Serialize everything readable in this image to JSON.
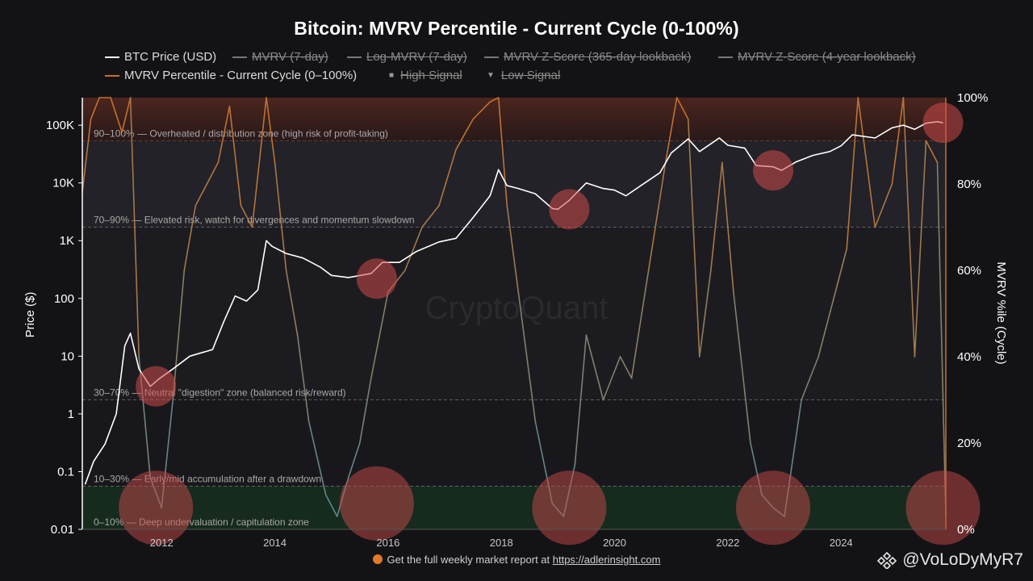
{
  "chart_data": {
    "type": "line",
    "title": "Bitcoin: MVRV Percentile - Current Cycle (0-100%)",
    "ylabel_left": "Price ($)",
    "ylabel_right": "MVRV %ile (Cycle)",
    "y_left_scale": "log",
    "y_left_range": [
      0.01,
      300000
    ],
    "y_left_ticks": [
      "100K",
      "10K",
      "1K",
      "100",
      "10",
      "1",
      "0.1",
      "0.01"
    ],
    "y_left_tick_values": [
      100000,
      10000,
      1000,
      100,
      10,
      1,
      0.1,
      0.01
    ],
    "y_right_range": [
      0,
      100
    ],
    "y_right_ticks": [
      "100%",
      "80%",
      "60%",
      "40%",
      "20%",
      "0%"
    ],
    "y_right_tick_values": [
      100,
      80,
      60,
      40,
      20,
      0
    ],
    "x_range": [
      2010.6,
      2025.85
    ],
    "x_ticks": [
      "2012",
      "2014",
      "2016",
      "2018",
      "2020",
      "2022",
      "2024"
    ],
    "x_tick_values": [
      2012,
      2014,
      2016,
      2018,
      2020,
      2022,
      2024
    ],
    "legend": [
      {
        "label": "BTC Price (USD)",
        "color": "#ffffff",
        "active": true
      },
      {
        "label": "MVRV (7-day)",
        "color": "#777777",
        "active": false
      },
      {
        "label": "Log-MVRV (7-day)",
        "color": "#777777",
        "active": false
      },
      {
        "label": "MVRV Z-Score (365-day lookback)",
        "color": "#777777",
        "active": false
      },
      {
        "label": "MVRV Z-Score (4-year lookback)",
        "color": "#777777",
        "active": false
      },
      {
        "label": "MVRV Percentile - Current Cycle (0–100%)",
        "color": "#c8702a",
        "active": true
      },
      {
        "label": "High Signal",
        "color": "#9a9a9a",
        "active": false,
        "marker": "■"
      },
      {
        "label": "Low Signal",
        "color": "#9a9a9a",
        "active": false,
        "marker": "▼"
      }
    ],
    "zones": [
      {
        "label": "90–100% — Overheated / distribution zone (high risk of profit-taking)",
        "from": 90,
        "to": 100,
        "color": "#5a2a22"
      },
      {
        "label": "70–90% — Elevated risk, watch for divergences and momentum slowdown",
        "from": 70,
        "to": 90,
        "color": "#26262c"
      },
      {
        "label": "30–70% — Neutral \"digestion\" zone (balanced risk/reward)",
        "from": 30,
        "to": 70,
        "color": "#1e1e22"
      },
      {
        "label": "10–30% — Early/mid accumulation after a drawdown",
        "from": 10,
        "to": 30,
        "color": "#1a1a1d"
      },
      {
        "label": "0–10% — Deep undervaluation / capitulation zone",
        "from": 0,
        "to": 10,
        "color": "#17301f"
      }
    ],
    "series": [
      {
        "name": "BTC Price (USD)",
        "axis": "left",
        "color": "#ffffff",
        "x": [
          2010.65,
          2010.8,
          2011.0,
          2011.2,
          2011.35,
          2011.45,
          2011.6,
          2011.8,
          2011.95,
          2012.2,
          2012.5,
          2012.9,
          2013.1,
          2013.3,
          2013.5,
          2013.7,
          2013.85,
          2013.95,
          2014.2,
          2014.5,
          2014.8,
          2015.0,
          2015.3,
          2015.7,
          2015.9,
          2016.2,
          2016.5,
          2016.9,
          2017.2,
          2017.5,
          2017.8,
          2017.95,
          2018.1,
          2018.3,
          2018.6,
          2018.9,
          2019.0,
          2019.2,
          2019.5,
          2019.8,
          2020.0,
          2020.2,
          2020.5,
          2020.8,
          2021.0,
          2021.3,
          2021.5,
          2021.85,
          2022.0,
          2022.3,
          2022.5,
          2022.8,
          2022.95,
          2023.2,
          2023.5,
          2023.8,
          2024.0,
          2024.2,
          2024.6,
          2024.9,
          2025.1,
          2025.3,
          2025.5,
          2025.7,
          2025.8
        ],
        "values": [
          0.06,
          0.15,
          0.3,
          1.0,
          15,
          25,
          6,
          3,
          4,
          6,
          10,
          13,
          40,
          110,
          90,
          140,
          1000,
          800,
          600,
          500,
          350,
          250,
          230,
          270,
          420,
          420,
          650,
          950,
          1100,
          2500,
          6000,
          17000,
          9000,
          8000,
          6500,
          3600,
          3500,
          5000,
          10000,
          8000,
          7500,
          6000,
          9500,
          15000,
          33000,
          58000,
          35000,
          60000,
          45000,
          40000,
          20000,
          19000,
          16500,
          23000,
          30000,
          35000,
          44000,
          68000,
          60000,
          90000,
          100000,
          85000,
          108000,
          115000,
          110000
        ]
      },
      {
        "name": "MVRV Percentile - Current Cycle (0–100%)",
        "axis": "right",
        "color": "#c8702a",
        "x": [
          2010.6,
          2010.75,
          2010.9,
          2011.1,
          2011.3,
          2011.45,
          2011.6,
          2011.8,
          2012.0,
          2012.2,
          2012.4,
          2012.6,
          2012.8,
          2013.0,
          2013.2,
          2013.4,
          2013.6,
          2013.85,
          2014.0,
          2014.2,
          2014.4,
          2014.6,
          2014.9,
          2015.1,
          2015.3,
          2015.5,
          2015.7,
          2016.0,
          2016.3,
          2016.6,
          2016.9,
          2017.2,
          2017.5,
          2017.8,
          2017.95,
          2018.1,
          2018.3,
          2018.6,
          2018.9,
          2019.1,
          2019.3,
          2019.5,
          2019.8,
          2020.1,
          2020.3,
          2020.6,
          2020.9,
          2021.1,
          2021.3,
          2021.5,
          2021.7,
          2021.9,
          2022.1,
          2022.4,
          2022.6,
          2022.8,
          2023.0,
          2023.3,
          2023.6,
          2023.9,
          2024.1,
          2024.3,
          2024.6,
          2024.9,
          2025.1,
          2025.3,
          2025.5,
          2025.7,
          2025.85
        ],
        "values": [
          78,
          95,
          100,
          100,
          92,
          100,
          40,
          12,
          5,
          30,
          60,
          75,
          80,
          85,
          98,
          75,
          70,
          100,
          85,
          60,
          45,
          25,
          8,
          3,
          12,
          20,
          35,
          55,
          60,
          70,
          75,
          88,
          95,
          99,
          100,
          75,
          55,
          25,
          6,
          3,
          15,
          45,
          30,
          40,
          35,
          60,
          85,
          100,
          95,
          40,
          60,
          85,
          55,
          20,
          8,
          5,
          3,
          30,
          40,
          55,
          65,
          100,
          70,
          80,
          100,
          40,
          90,
          85,
          3
        ]
      }
    ],
    "highlights": [
      {
        "x": 2011.9,
        "y_price": 3
      },
      {
        "x": 2011.9,
        "y_pct": 5
      },
      {
        "x": 2015.8,
        "y_price": 220
      },
      {
        "x": 2015.8,
        "y_pct": 6
      },
      {
        "x": 2019.2,
        "y_price": 3500
      },
      {
        "x": 2019.2,
        "y_pct": 5
      },
      {
        "x": 2022.8,
        "y_price": 16500
      },
      {
        "x": 2022.8,
        "y_pct": 5
      },
      {
        "x": 2025.8,
        "y_price": 110000
      },
      {
        "x": 2025.8,
        "y_pct": 5
      }
    ]
  },
  "watermark_text": "CryptoQuant",
  "footer": {
    "text": "Get the full weekly market report at ",
    "link": "https://adlerinsight.com"
  },
  "author": "@VoLoDyMyR7"
}
